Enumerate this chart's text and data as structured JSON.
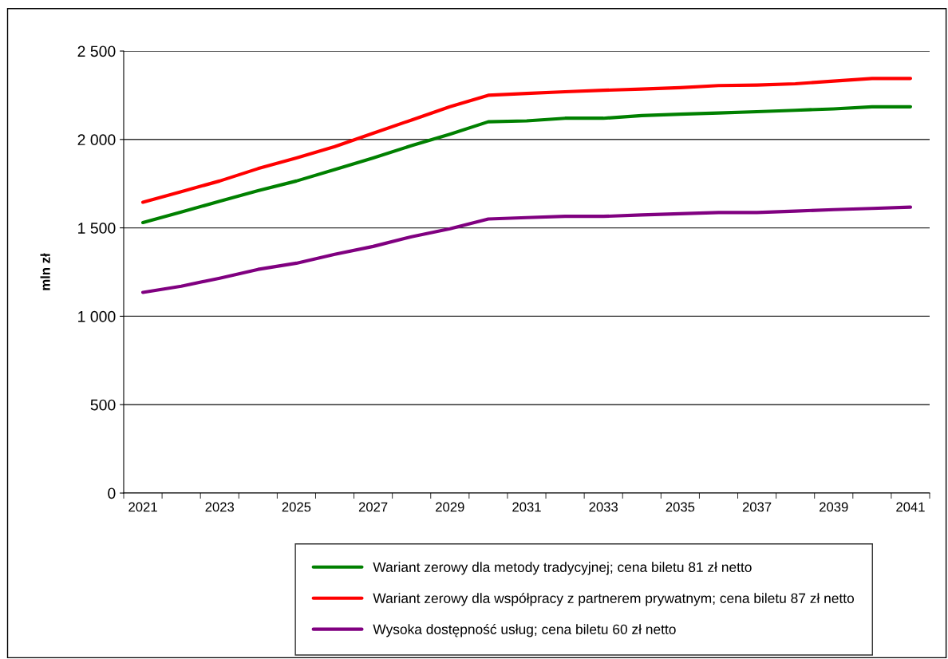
{
  "chart_data": {
    "type": "line",
    "ylabel": "mln zł",
    "categories": [
      "2021",
      null,
      "2023",
      null,
      "2025",
      null,
      "2027",
      null,
      "2029",
      null,
      "2031",
      null,
      "2033",
      null,
      "2035",
      null,
      "2037",
      null,
      "2039",
      null,
      "2041"
    ],
    "series": [
      {
        "name": "Wariant zerowy dla metody tradycyjnej; cena biletu 81 zł netto",
        "color": "#008000",
        "values": [
          1530,
          1590,
          1650,
          1710,
          1765,
          1830,
          1895,
          1965,
          2030,
          2100,
          2105,
          2120,
          2120,
          2135,
          2143,
          2150,
          2157,
          2165,
          2173,
          2185,
          2185
        ]
      },
      {
        "name": "Wariant zerowy dla współpracy z partnerem prywatnym; cena biletu 87 zł netto",
        "color": "#ff0000",
        "values": [
          1645,
          1705,
          1765,
          1835,
          1895,
          1960,
          2035,
          2110,
          2185,
          2250,
          2260,
          2270,
          2278,
          2285,
          2293,
          2305,
          2308,
          2315,
          2330,
          2345,
          2345
        ]
      },
      {
        "name": "Wysoka dostępność usług; cena biletu 60 zł netto",
        "color": "#800080",
        "values": [
          1135,
          1170,
          1215,
          1265,
          1300,
          1350,
          1395,
          1450,
          1495,
          1550,
          1558,
          1565,
          1565,
          1573,
          1580,
          1587,
          1587,
          1595,
          1603,
          1610,
          1617
        ]
      }
    ],
    "ylim": [
      0,
      2500
    ],
    "yticks": [
      0,
      500,
      {
        "value": 1000,
        "label": "1 000"
      },
      {
        "value": 1500,
        "label": "1 500"
      },
      {
        "value": 2000,
        "label": "2 000"
      },
      {
        "value": 2500,
        "label": "2 500"
      }
    ],
    "grid": "y",
    "legend": "bottom",
    "marker": "none",
    "line_style": "solid"
  }
}
